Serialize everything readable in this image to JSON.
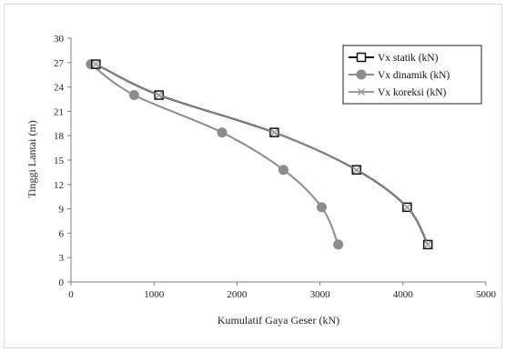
{
  "chart_data": {
    "type": "line",
    "xlabel": "Kumulatif Gaya Geser (kN)",
    "ylabel": "Tinggi Lantai (m)",
    "xlim": [
      0,
      5000
    ],
    "ylim": [
      0,
      30
    ],
    "x_ticks": [
      0,
      1000,
      2000,
      3000,
      4000,
      5000
    ],
    "y_ticks": [
      0,
      3,
      6,
      9,
      12,
      15,
      18,
      21,
      24,
      27,
      30
    ],
    "grid": false,
    "legend_position": "top-right",
    "series": [
      {
        "name": "Vx statik (kN)",
        "color": "#111111",
        "marker": "square",
        "x": [
          4300,
          4050,
          3440,
          2450,
          1060,
          300
        ],
        "y": [
          4.6,
          9.2,
          13.8,
          18.4,
          23.0,
          26.8
        ]
      },
      {
        "name": "Vx dinamik (kN)",
        "color": "#8c8c8c",
        "marker": "circle",
        "x": [
          3220,
          3020,
          2560,
          1820,
          760,
          240
        ],
        "y": [
          4.6,
          9.2,
          13.8,
          18.4,
          23.0,
          26.8
        ]
      },
      {
        "name": "Vx koreksi (kN)",
        "color": "#9a9a9a",
        "marker": "x",
        "x": [
          4300,
          4050,
          3440,
          2450,
          1060,
          300
        ],
        "y": [
          4.6,
          9.2,
          13.8,
          18.4,
          23.0,
          26.8
        ]
      }
    ]
  }
}
